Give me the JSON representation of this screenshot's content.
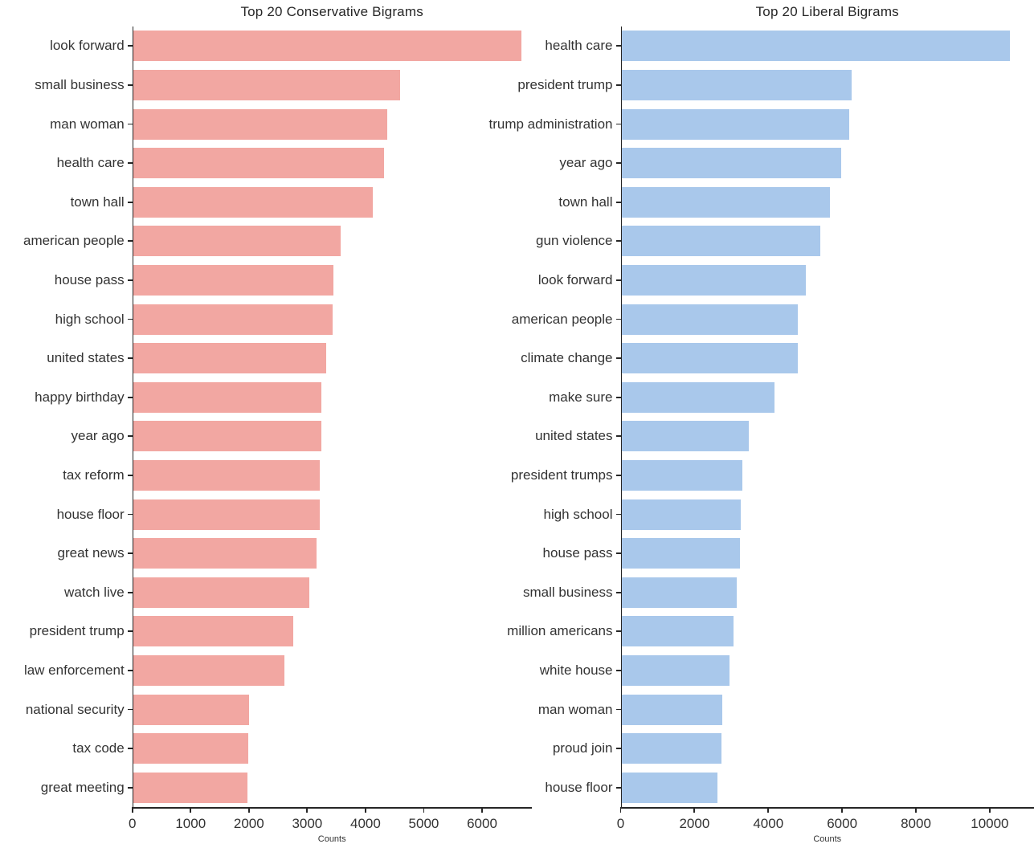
{
  "chart_data": [
    {
      "type": "bar",
      "orientation": "horizontal",
      "title": "Top 20 Conservative Bigrams",
      "xlabel": "Counts",
      "ylabel": "",
      "bar_color": "#f2a7a2",
      "xlim": [
        0,
        6850
      ],
      "xticks": [
        0,
        1000,
        2000,
        3000,
        4000,
        5000,
        6000
      ],
      "grid": false,
      "legend": null,
      "categories": [
        "look forward",
        "small business",
        "man woman",
        "health care",
        "town hall",
        "american people",
        "house pass",
        "high school",
        "united states",
        "happy birthday",
        "year ago",
        "tax reform",
        "house floor",
        "great news",
        "watch live",
        "president trump",
        "law enforcement",
        "national security",
        "tax code",
        "great meeting"
      ],
      "values": [
        6680,
        4600,
        4380,
        4320,
        4120,
        3580,
        3450,
        3440,
        3330,
        3250,
        3240,
        3220,
        3210,
        3160,
        3030,
        2760,
        2610,
        2000,
        1990,
        1980
      ]
    },
    {
      "type": "bar",
      "orientation": "horizontal",
      "title": "Top 20 Liberal Bigrams",
      "xlabel": "Counts",
      "ylabel": "",
      "bar_color": "#a9c8eb",
      "xlim": [
        0,
        11200
      ],
      "xticks": [
        0,
        2000,
        4000,
        6000,
        8000,
        10000
      ],
      "grid": false,
      "legend": null,
      "categories": [
        "health care",
        "president trump",
        "trump administration",
        "year ago",
        "town hall",
        "gun violence",
        "look forward",
        "american people",
        "climate change",
        "make sure",
        "united states",
        "president trumps",
        "high school",
        "house pass",
        "small business",
        "million americans",
        "white house",
        "man woman",
        "proud join",
        "house floor"
      ],
      "values": [
        10550,
        6260,
        6200,
        5970,
        5670,
        5400,
        5010,
        4810,
        4800,
        4170,
        3480,
        3290,
        3250,
        3240,
        3150,
        3060,
        2940,
        2760,
        2740,
        2630
      ]
    }
  ]
}
